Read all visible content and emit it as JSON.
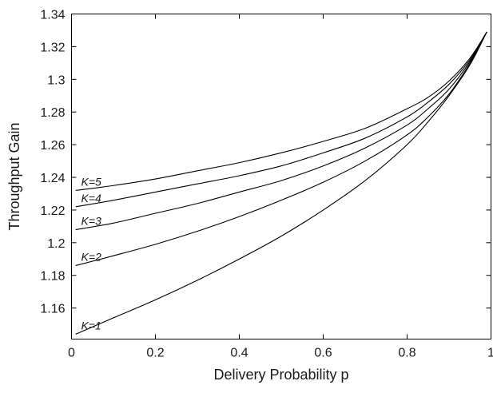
{
  "chart_data": {
    "type": "line",
    "title": "",
    "xlabel": "Delivery Probability p",
    "ylabel": "Throughput Gain",
    "xlim": [
      0,
      1
    ],
    "ylim": [
      1.141,
      1.34
    ],
    "grid": false,
    "xticks": [
      0,
      0.2,
      0.4,
      0.6,
      0.8,
      1
    ],
    "xtick_labels": [
      "0",
      "0.2",
      "0.4",
      "0.6",
      "0.8",
      "1"
    ],
    "yticks": [
      1.16,
      1.18,
      1.2,
      1.22,
      1.24,
      1.26,
      1.28,
      1.3,
      1.32,
      1.34
    ],
    "ytick_labels": [
      "1.16",
      "1.18",
      "1.2",
      "1.22",
      "1.24",
      "1.26",
      "1.28",
      "1.3",
      "1.32",
      "1.34"
    ],
    "x": [
      0.01,
      0.1,
      0.2,
      0.3,
      0.4,
      0.5,
      0.6,
      0.7,
      0.8,
      0.85,
      0.9,
      0.95,
      0.99
    ],
    "series": [
      {
        "name": "K=1",
        "values": [
          1.144,
          1.154,
          1.165,
          1.177,
          1.19,
          1.204,
          1.22,
          1.238,
          1.26,
          1.274,
          1.29,
          1.309,
          1.329
        ],
        "color": "#000000"
      },
      {
        "name": "K=2",
        "values": [
          1.186,
          1.192,
          1.199,
          1.207,
          1.216,
          1.226,
          1.237,
          1.25,
          1.266,
          1.277,
          1.291,
          1.31,
          1.329
        ],
        "color": "#000000"
      },
      {
        "name": "K=3",
        "values": [
          1.208,
          1.212,
          1.218,
          1.224,
          1.231,
          1.238,
          1.247,
          1.258,
          1.272,
          1.282,
          1.294,
          1.311,
          1.329
        ],
        "color": "#000000"
      },
      {
        "name": "K=4",
        "values": [
          1.222,
          1.226,
          1.231,
          1.236,
          1.241,
          1.247,
          1.255,
          1.264,
          1.277,
          1.286,
          1.297,
          1.312,
          1.329
        ],
        "color": "#000000"
      },
      {
        "name": "K=5",
        "values": [
          1.232,
          1.235,
          1.239,
          1.244,
          1.249,
          1.255,
          1.262,
          1.27,
          1.282,
          1.289,
          1.299,
          1.313,
          1.329
        ],
        "color": "#000000"
      }
    ],
    "line_labels": [
      "K=1",
      "K=2",
      "K=3",
      "K=4",
      "K=5"
    ]
  }
}
